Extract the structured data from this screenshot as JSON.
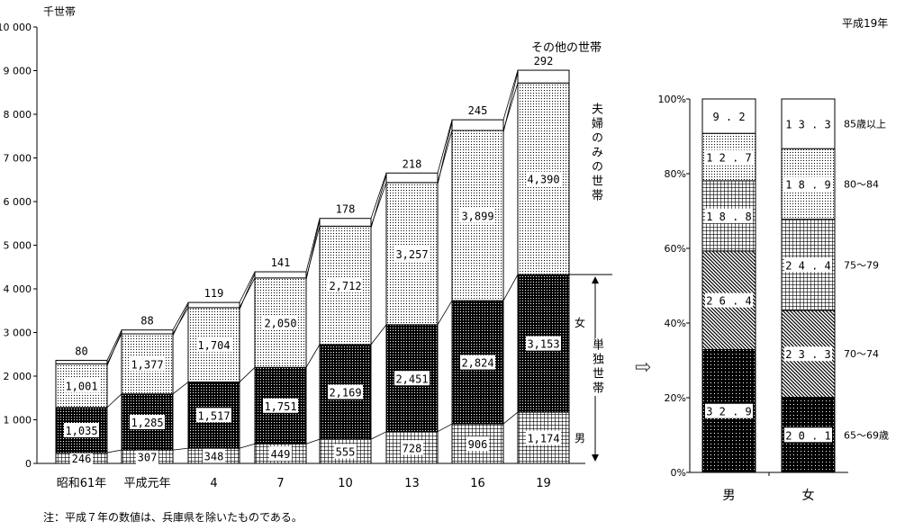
{
  "chart_data": [
    {
      "type": "bar",
      "stacked": true,
      "unit_label": "千世帯",
      "categories": [
        "昭和61年",
        "平成元年",
        "4",
        "7",
        "10",
        "13",
        "16",
        "19"
      ],
      "ylim": [
        0,
        10000
      ],
      "yticks": [
        "0",
        "1 000",
        "2 000",
        "3 000",
        "4 000",
        "5 000",
        "6 000",
        "7 000",
        "8 000",
        "9 000",
        "10 000"
      ],
      "series": [
        {
          "name": "男",
          "group": "単独世帯",
          "values": [
            246,
            307,
            348,
            449,
            555,
            728,
            906,
            1174
          ],
          "labels": [
            "246",
            "307",
            "348",
            "449",
            "555",
            "728",
            "906",
            "1,174"
          ]
        },
        {
          "name": "女",
          "group": "単独世帯",
          "values": [
            1035,
            1285,
            1517,
            1751,
            2169,
            2451,
            2824,
            3153
          ],
          "labels": [
            "1,035",
            "1,285",
            "1,517",
            "1,751",
            "2,169",
            "2,451",
            "2,824",
            "3,153"
          ]
        },
        {
          "name": "夫婦のみの世帯",
          "values": [
            1001,
            1377,
            1704,
            2050,
            2712,
            3257,
            3899,
            4390
          ],
          "labels": [
            "1,001",
            "1,377",
            "1,704",
            "2,050",
            "2,712",
            "3,257",
            "3,899",
            "4,390"
          ]
        },
        {
          "name": "その他の世帯",
          "values": [
            80,
            88,
            119,
            141,
            178,
            218,
            245,
            292
          ],
          "labels": [
            "80",
            "88",
            "119",
            "141",
            "178",
            "218",
            "245",
            "292"
          ]
        }
      ],
      "annotations": {
        "single_household": "単独世帯",
        "female": "女",
        "male": "男",
        "couple": "夫婦のみの世帯",
        "other": "その他の世帯"
      },
      "note": "注：平成７年の数値は、兵庫県を除いたものである。"
    },
    {
      "type": "bar",
      "stacked": true,
      "title": "平成19年",
      "categories": [
        "男",
        "女"
      ],
      "ylim": [
        0,
        100
      ],
      "yticks": [
        "0%",
        "20%",
        "40%",
        "60%",
        "80%",
        "100%"
      ],
      "series": [
        {
          "name": "65～69歳",
          "values": [
            32.9,
            20.1
          ]
        },
        {
          "name": "70～74",
          "values": [
            26.4,
            23.3
          ]
        },
        {
          "name": "75～79",
          "values": [
            18.8,
            24.4
          ]
        },
        {
          "name": "80～84",
          "values": [
            12.7,
            18.9
          ]
        },
        {
          "name": "85歳以上",
          "values": [
            9.2,
            13.3
          ]
        }
      ]
    }
  ],
  "arrow": "⇨"
}
